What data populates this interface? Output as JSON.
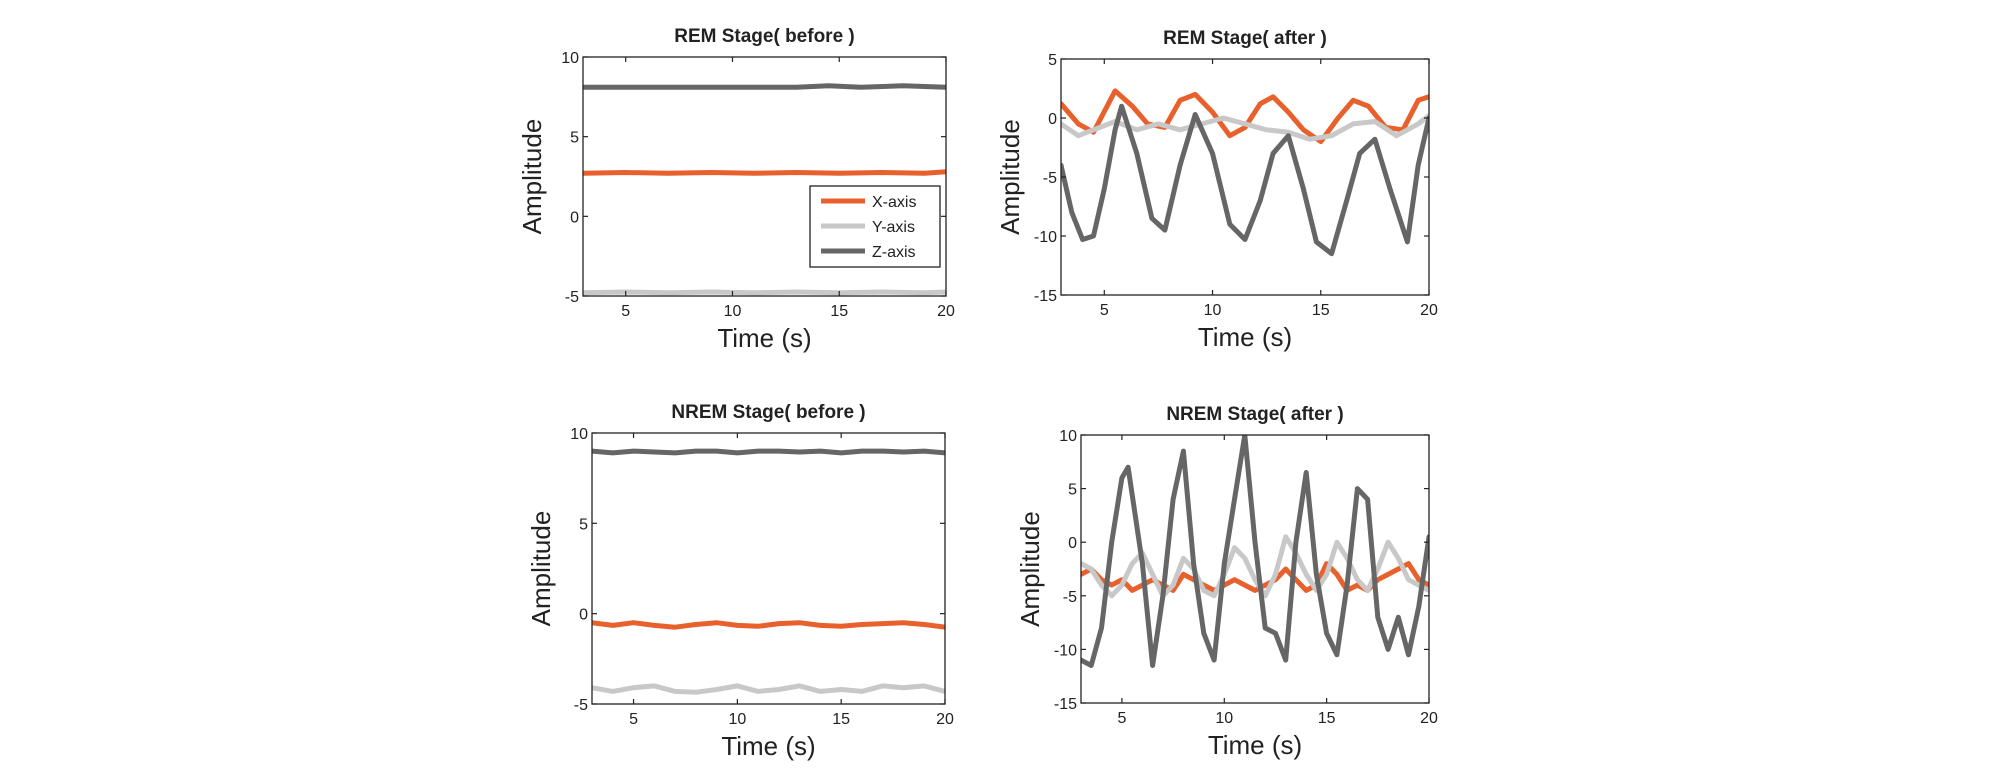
{
  "chart_data": [
    {
      "type": "line",
      "title": "REM Stage( before )",
      "xlabel": "Time (s)",
      "ylabel": "Amplitude",
      "xlim": [
        3,
        20
      ],
      "ylim": [
        -5,
        10
      ],
      "xticks": [
        5,
        10,
        15,
        20
      ],
      "yticks": [
        -5,
        0,
        5,
        10
      ],
      "legend": {
        "placement": "lower-right",
        "entries": [
          "X-axis",
          "Y-axis",
          "Z-axis"
        ]
      },
      "series": [
        {
          "name": "X-axis",
          "color": "#e8602c",
          "x": [
            3,
            5,
            7,
            9,
            11,
            13,
            15,
            17,
            19,
            20
          ],
          "y": [
            2.7,
            2.75,
            2.7,
            2.75,
            2.7,
            2.75,
            2.7,
            2.75,
            2.7,
            2.8
          ]
        },
        {
          "name": "Y-axis",
          "color": "#c8c8c8",
          "x": [
            3,
            5,
            7,
            9,
            11,
            13,
            15,
            17,
            19,
            20
          ],
          "y": [
            -4.8,
            -4.75,
            -4.8,
            -4.75,
            -4.8,
            -4.75,
            -4.8,
            -4.75,
            -4.8,
            -4.75
          ]
        },
        {
          "name": "Z-axis",
          "color": "#666666",
          "x": [
            3,
            5,
            7,
            9,
            11,
            13,
            14.5,
            16,
            18,
            20
          ],
          "y": [
            8.1,
            8.1,
            8.1,
            8.1,
            8.1,
            8.1,
            8.2,
            8.1,
            8.2,
            8.1
          ]
        }
      ]
    },
    {
      "type": "line",
      "title": "REM Stage( after )",
      "xlabel": "Time (s)",
      "ylabel": "Amplitude",
      "xlim": [
        3,
        20
      ],
      "ylim": [
        -15,
        5
      ],
      "xticks": [
        5,
        10,
        15,
        20
      ],
      "yticks": [
        -15,
        -10,
        -5,
        0,
        5
      ],
      "series": [
        {
          "name": "X-axis",
          "color": "#e8602c",
          "x": [
            3,
            3.8,
            4.5,
            5.5,
            6.3,
            7,
            7.8,
            8.5,
            9.2,
            10,
            10.8,
            11.5,
            12.2,
            12.8,
            13.5,
            14.2,
            15,
            15.8,
            16.5,
            17.2,
            18,
            18.8,
            19.5,
            20
          ],
          "y": [
            1.2,
            -0.5,
            -1.2,
            2.3,
            1.0,
            -0.5,
            -0.8,
            1.5,
            2.0,
            0.5,
            -1.5,
            -0.8,
            1.2,
            1.8,
            0.5,
            -1.0,
            -2.0,
            0.0,
            1.5,
            1.0,
            -0.8,
            -1.0,
            1.5,
            1.8
          ]
        },
        {
          "name": "Y-axis",
          "color": "#c8c8c8",
          "x": [
            3,
            3.8,
            4.5,
            5.5,
            6.5,
            7.5,
            8.5,
            9.5,
            10.5,
            11.5,
            12.5,
            13.5,
            14.5,
            15.5,
            16.5,
            17.5,
            18.5,
            19.5,
            20
          ],
          "y": [
            -0.5,
            -1.5,
            -1.0,
            -0.3,
            -1.0,
            -0.5,
            -1.0,
            -0.5,
            0.0,
            -0.5,
            -1.0,
            -1.2,
            -1.8,
            -1.5,
            -0.5,
            -0.3,
            -1.5,
            -0.5,
            0.2
          ]
        },
        {
          "name": "Z-axis",
          "color": "#666666",
          "x": [
            3,
            3.5,
            4,
            4.5,
            5,
            5.5,
            5.8,
            6.5,
            7.2,
            7.8,
            8.5,
            9.2,
            10,
            10.8,
            11.5,
            12.2,
            12.8,
            13.5,
            14.2,
            14.8,
            15.5,
            16.2,
            16.8,
            17.5,
            18.2,
            19,
            19.5,
            20
          ],
          "y": [
            -4.0,
            -8.0,
            -10.3,
            -10.0,
            -6.0,
            -1.0,
            1.0,
            -3.0,
            -8.5,
            -9.5,
            -4.0,
            0.3,
            -3.0,
            -9.0,
            -10.3,
            -7.0,
            -3.0,
            -1.5,
            -6.0,
            -10.5,
            -11.5,
            -7.0,
            -3.0,
            -1.8,
            -6.0,
            -10.5,
            -4.0,
            0.0
          ]
        }
      ]
    },
    {
      "type": "line",
      "title": "NREM Stage( before )",
      "xlabel": "Time (s)",
      "ylabel": "Amplitude",
      "xlim": [
        3,
        20
      ],
      "ylim": [
        -5,
        10
      ],
      "xticks": [
        5,
        10,
        15,
        20
      ],
      "yticks": [
        -5,
        0,
        5,
        10
      ],
      "series": [
        {
          "name": "X-axis",
          "color": "#e8602c",
          "x": [
            3,
            4,
            5,
            6,
            7,
            8,
            9,
            10,
            11,
            12,
            13,
            14,
            15,
            16,
            17,
            18,
            19,
            20
          ],
          "y": [
            -0.5,
            -0.65,
            -0.5,
            -0.65,
            -0.75,
            -0.6,
            -0.5,
            -0.65,
            -0.7,
            -0.55,
            -0.5,
            -0.65,
            -0.7,
            -0.6,
            -0.55,
            -0.5,
            -0.6,
            -0.75
          ]
        },
        {
          "name": "Y-axis",
          "color": "#c8c8c8",
          "x": [
            3,
            4,
            5,
            6,
            7,
            8,
            9,
            10,
            11,
            12,
            13,
            14,
            15,
            16,
            17,
            18,
            19,
            20
          ],
          "y": [
            -4.1,
            -4.3,
            -4.1,
            -4.0,
            -4.3,
            -4.35,
            -4.2,
            -4.0,
            -4.3,
            -4.2,
            -4.0,
            -4.3,
            -4.2,
            -4.3,
            -4.0,
            -4.1,
            -4.0,
            -4.3
          ]
        },
        {
          "name": "Z-axis",
          "color": "#666666",
          "x": [
            3,
            4,
            5,
            6,
            7,
            8,
            9,
            10,
            11,
            12,
            13,
            14,
            15,
            16,
            17,
            18,
            19,
            20
          ],
          "y": [
            9.0,
            8.9,
            9.0,
            8.95,
            8.9,
            9.0,
            9.0,
            8.9,
            9.0,
            9.0,
            8.95,
            9.0,
            8.9,
            9.0,
            9.0,
            8.95,
            9.0,
            8.9
          ]
        }
      ]
    },
    {
      "type": "line",
      "title": "NREM Stage( after )",
      "xlabel": "Time (s)",
      "ylabel": "Amplitude",
      "xlim": [
        3,
        20
      ],
      "ylim": [
        -15,
        10
      ],
      "xticks": [
        5,
        10,
        15,
        20
      ],
      "yticks": [
        -15,
        -10,
        -5,
        0,
        5,
        10
      ],
      "series": [
        {
          "name": "X-axis",
          "color": "#e8602c",
          "x": [
            3,
            3.5,
            4,
            4.5,
            5,
            5.5,
            6,
            6.5,
            7,
            7.5,
            8,
            8.5,
            9,
            9.5,
            10,
            10.5,
            11,
            11.5,
            12,
            12.5,
            13,
            13.5,
            14,
            14.5,
            15,
            15.5,
            16,
            16.5,
            17,
            17.5,
            18,
            18.5,
            19,
            19.5,
            20
          ],
          "y": [
            -3.0,
            -2.5,
            -3.5,
            -4.0,
            -3.5,
            -4.5,
            -4.0,
            -3.5,
            -4.0,
            -4.5,
            -3.0,
            -3.5,
            -4.0,
            -4.5,
            -4.0,
            -3.5,
            -4.0,
            -4.5,
            -4.0,
            -3.5,
            -2.5,
            -3.5,
            -4.5,
            -4.0,
            -2.0,
            -3.0,
            -4.5,
            -4.0,
            -4.5,
            -3.5,
            -3.0,
            -2.5,
            -2.0,
            -3.5,
            -4.0
          ]
        },
        {
          "name": "Y-axis",
          "color": "#c8c8c8",
          "x": [
            3,
            3.5,
            4,
            4.5,
            5,
            5.5,
            6,
            6.5,
            7,
            7.5,
            8,
            8.5,
            9,
            9.5,
            10,
            10.5,
            11,
            11.5,
            12,
            12.5,
            13,
            13.5,
            14,
            14.5,
            15,
            15.5,
            16,
            16.5,
            17,
            17.5,
            18,
            18.5,
            19,
            19.5,
            20
          ],
          "y": [
            -2.0,
            -2.5,
            -4.0,
            -5.0,
            -4.0,
            -2.0,
            -1.0,
            -3.0,
            -5.0,
            -4.0,
            -1.5,
            -2.5,
            -4.5,
            -5.0,
            -3.0,
            -0.5,
            -1.5,
            -3.5,
            -5.0,
            -3.0,
            0.5,
            -1.0,
            -3.0,
            -4.5,
            -3.0,
            0.0,
            -1.5,
            -3.5,
            -4.5,
            -2.5,
            0.0,
            -1.5,
            -3.5,
            -4.0,
            -4.5
          ]
        },
        {
          "name": "Z-axis",
          "color": "#666666",
          "x": [
            3,
            3.5,
            4,
            4.5,
            5,
            5.3,
            6,
            6.5,
            7,
            7.5,
            8,
            8.5,
            9,
            9.5,
            10,
            10.5,
            11,
            11.5,
            12,
            12.5,
            13,
            13.5,
            14,
            14.5,
            15,
            15.5,
            16,
            16.5,
            17,
            17.5,
            18,
            18.5,
            19,
            19.5,
            20
          ],
          "y": [
            -11.0,
            -11.5,
            -8.0,
            0.0,
            6.0,
            7.0,
            -2.0,
            -11.5,
            -5.0,
            4.0,
            8.5,
            -2.0,
            -8.5,
            -11.0,
            -2.0,
            4.0,
            10.0,
            0.0,
            -8.0,
            -8.5,
            -11.0,
            0.0,
            6.5,
            -3.0,
            -8.5,
            -10.5,
            -4.0,
            5.0,
            4.0,
            -7.0,
            -10.0,
            -7.0,
            -10.5,
            -6.0,
            0.5
          ]
        }
      ]
    }
  ]
}
